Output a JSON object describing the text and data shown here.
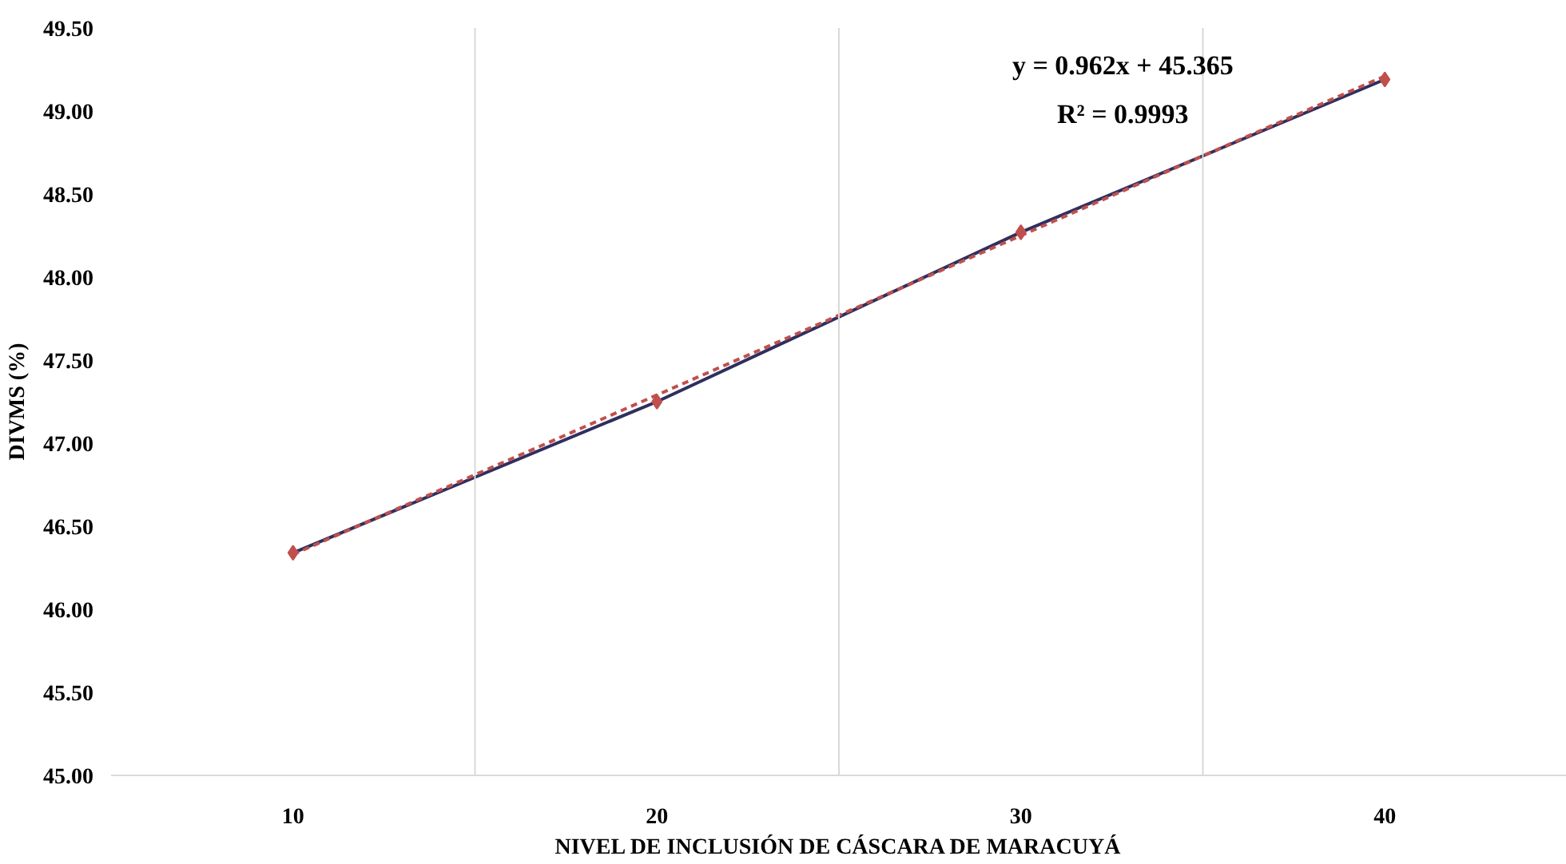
{
  "chart_data": {
    "type": "line",
    "xlabel": "NIVEL DE INCLUSIÓN DE CÁSCARA DE MARACUYÁ",
    "ylabel": "DIVMS (%)",
    "categories": [
      "10",
      "20",
      "30",
      "40"
    ],
    "series": [
      {
        "color": "#2f2f5f",
        "colors": [
          "#c0504d",
          "#c0504d",
          "#c0504d",
          "#c0504d"
        ],
        "marker": "diamond",
        "line_style": "solid",
        "values": [
          46.34,
          47.25,
          48.27,
          49.19
        ]
      },
      {
        "color": "#c0504d",
        "marker": "none",
        "line_style": "dashed",
        "values": [
          46.33,
          47.29,
          48.25,
          49.21
        ]
      }
    ],
    "ylim": [
      45.0,
      49.5
    ],
    "yticks": [
      {
        "value": 45.0,
        "label": "45.00"
      },
      {
        "value": 45.5,
        "label": "45.50"
      },
      {
        "value": 46.0,
        "label": "46.00"
      },
      {
        "value": 46.5,
        "label": "46.50"
      },
      {
        "value": 47.0,
        "label": "47.00"
      },
      {
        "value": 47.5,
        "label": "47.50"
      },
      {
        "value": 48.0,
        "label": "48.00"
      },
      {
        "value": 48.5,
        "label": "48.50"
      },
      {
        "value": 49.0,
        "label": "49.00"
      },
      {
        "value": 49.5,
        "label": "49.50"
      }
    ],
    "grid": "x",
    "annotations": [
      "y = 0.962x + 45.365",
      "R² = 0.9993"
    ]
  }
}
